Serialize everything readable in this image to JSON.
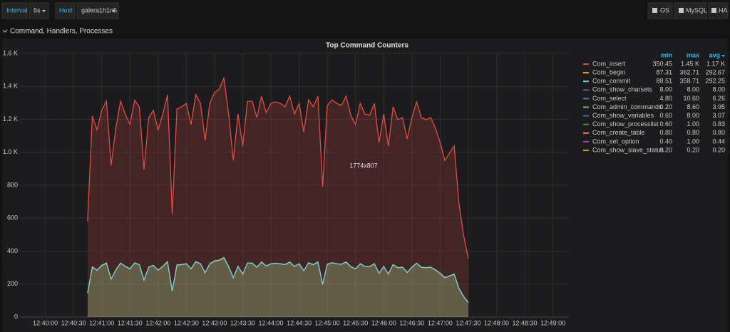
{
  "toolbar": {
    "interval_label": "Interval",
    "interval": "5s",
    "host_label": "Host",
    "host": "galera1h1n5",
    "buttons": [
      "OS",
      "MySQL",
      "HA"
    ]
  },
  "row_title": "Command, Handlers, Processes",
  "chart_data": {
    "type": "line",
    "title": "Top Command Counters",
    "annotation": "1774x807",
    "legend_headers": [
      "min",
      "max",
      "avg"
    ],
    "xlim": [
      "12:39:33",
      "12:49:17"
    ],
    "xticks": [
      "12:40:00",
      "12:40:30",
      "12:41:00",
      "12:41:30",
      "12:42:00",
      "12:42:30",
      "12:43:00",
      "12:43:30",
      "12:44:00",
      "12:44:30",
      "12:45:00",
      "12:45:30",
      "12:46:00",
      "12:46:30",
      "12:47:00",
      "12:47:30",
      "12:48:00",
      "12:48:30",
      "12:49:00"
    ],
    "ylim": [
      0,
      1600
    ],
    "yticks": [
      0,
      200,
      400,
      600,
      800,
      {
        "value": 1000,
        "label": "1.0 K"
      },
      {
        "value": 1200,
        "label": "1.2 K"
      },
      {
        "value": 1400,
        "label": "1.4 K"
      },
      {
        "value": 1600,
        "label": "1.6 K"
      }
    ],
    "grid": true,
    "x": [
      "12:40:45",
      "12:40:50",
      "12:40:55",
      "12:41:00",
      "12:41:05",
      "12:41:10",
      "12:41:15",
      "12:41:20",
      "12:41:25",
      "12:41:30",
      "12:41:35",
      "12:41:40",
      "12:41:45",
      "12:41:50",
      "12:41:55",
      "12:42:00",
      "12:42:05",
      "12:42:10",
      "12:42:15",
      "12:42:20",
      "12:42:25",
      "12:42:30",
      "12:42:35",
      "12:42:40",
      "12:42:45",
      "12:42:50",
      "12:42:55",
      "12:43:00",
      "12:43:05",
      "12:43:10",
      "12:43:15",
      "12:43:20",
      "12:43:25",
      "12:43:30",
      "12:43:35",
      "12:43:40",
      "12:43:45",
      "12:43:50",
      "12:43:55",
      "12:44:00",
      "12:44:05",
      "12:44:10",
      "12:44:15",
      "12:44:20",
      "12:44:25",
      "12:44:30",
      "12:44:35",
      "12:44:40",
      "12:44:45",
      "12:44:50",
      "12:44:55",
      "12:45:00",
      "12:45:05",
      "12:45:10",
      "12:45:15",
      "12:45:20",
      "12:45:25",
      "12:45:30",
      "12:45:35",
      "12:45:40",
      "12:45:45",
      "12:45:50",
      "12:45:55",
      "12:46:00",
      "12:46:05",
      "12:46:10",
      "12:46:15",
      "12:46:20",
      "12:46:25",
      "12:46:30",
      "12:46:35",
      "12:46:40",
      "12:46:45",
      "12:46:50",
      "12:46:55",
      "12:47:00",
      "12:47:05",
      "12:47:10",
      "12:47:15",
      "12:47:20",
      "12:47:25",
      "12:47:30"
    ],
    "series": [
      {
        "name": "Com_insert",
        "color": "#e24d42",
        "min": "350.45",
        "max": "1.45 K",
        "avg": "1.17 K",
        "values": [
          580,
          1220,
          1137,
          1254,
          1310,
          921,
          1146,
          1310,
          1232,
          1168,
          1315,
          1276,
          895,
          1211,
          1254,
          1137,
          1232,
          1349,
          627,
          1263,
          1276,
          1297,
          1168,
          1349,
          1297,
          1072,
          1297,
          1362,
          1384,
          1449,
          1232,
          951,
          1232,
          1038,
          1310,
          1310,
          1211,
          1341,
          1241,
          1297,
          1306,
          1297,
          1276,
          1341,
          1232,
          1297,
          1124,
          1319,
          1276,
          1341,
          791,
          1284,
          1319,
          1297,
          1284,
          1341,
          1224,
          1168,
          1297,
          1232,
          1224,
          1297,
          1059,
          1232,
          1038,
          1276,
          1198,
          1211,
          1081,
          1211,
          1306,
          1211,
          1198,
          1211,
          1146,
          1059,
          951,
          995,
          1038,
          692,
          497,
          355
        ]
      },
      {
        "name": "Com_begin",
        "color": "#e5ac0e",
        "min": "87.31",
        "max": "362.71",
        "avg": "292.67",
        "values": [
          145,
          305,
          284,
          314,
          328,
          230,
          287,
          328,
          308,
          292,
          329,
          319,
          224,
          303,
          314,
          284,
          308,
          337,
          157,
          316,
          319,
          324,
          292,
          337,
          324,
          268,
          324,
          341,
          346,
          362,
          308,
          238,
          308,
          260,
          328,
          328,
          303,
          335,
          310,
          324,
          327,
          324,
          319,
          335,
          308,
          324,
          281,
          330,
          319,
          335,
          198,
          321,
          330,
          324,
          321,
          335,
          306,
          292,
          324,
          308,
          306,
          324,
          265,
          308,
          260,
          319,
          300,
          303,
          270,
          303,
          327,
          303,
          300,
          303,
          287,
          265,
          238,
          249,
          260,
          173,
          124,
          87
        ]
      },
      {
        "name": "Com_commit",
        "color": "#6ed0e0",
        "min": "88.51",
        "max": "358.71",
        "avg": "292.25",
        "values": [
          146,
          303,
          285,
          312,
          327,
          232,
          286,
          326,
          309,
          293,
          327,
          318,
          226,
          302,
          313,
          285,
          307,
          335,
          159,
          315,
          318,
          323,
          293,
          335,
          323,
          270,
          323,
          339,
          344,
          358,
          307,
          240,
          307,
          262,
          327,
          327,
          302,
          333,
          309,
          323,
          326,
          323,
          318,
          333,
          307,
          323,
          282,
          329,
          318,
          333,
          200,
          320,
          329,
          323,
          320,
          333,
          305,
          293,
          323,
          307,
          305,
          323,
          267,
          307,
          262,
          318,
          299,
          302,
          272,
          302,
          326,
          302,
          299,
          302,
          286,
          267,
          240,
          250,
          261,
          175,
          125,
          89
        ]
      },
      {
        "name": "Com_show_charsets",
        "color": "#705da0",
        "min": "8.00",
        "max": "8.00",
        "avg": "8.00"
      },
      {
        "name": "Com_select",
        "color": "#447ebc",
        "min": "4.80",
        "max": "10.60",
        "avg": "6.26"
      },
      {
        "name": "Com_admin_commands",
        "color": "#7eb26d",
        "min": "0.20",
        "max": "8.60",
        "avg": "3.95"
      },
      {
        "name": "Com_show_variables",
        "color": "#1f78c1",
        "min": "0.60",
        "max": "8.00",
        "avg": "3.07"
      },
      {
        "name": "Com_show_processlist",
        "color": "#508642",
        "min": "0.60",
        "max": "1.00",
        "avg": "0.83"
      },
      {
        "name": "Com_create_table",
        "color": "#ef843c",
        "min": "0.80",
        "max": "0.80",
        "avg": "0.80"
      },
      {
        "name": "Com_set_option",
        "color": "#ba43a9",
        "min": "0.40",
        "max": "1.00",
        "avg": "0.44"
      },
      {
        "name": "Com_show_slave_status",
        "color": "#cca300",
        "min": "0.20",
        "max": "0.20",
        "avg": "0.20"
      }
    ]
  }
}
